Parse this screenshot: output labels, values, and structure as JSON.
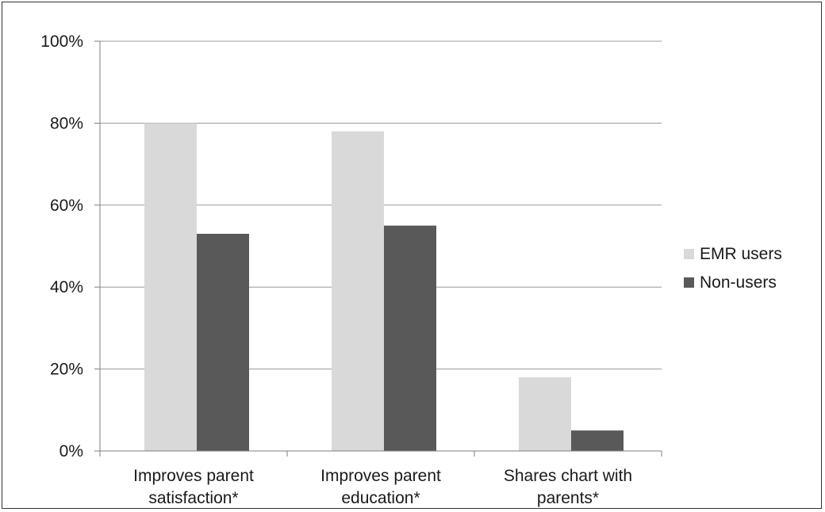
{
  "chart_data": {
    "type": "bar",
    "title": "",
    "xlabel": "",
    "ylabel": "",
    "categories": [
      [
        "Improves parent",
        "satisfaction*"
      ],
      [
        "Improves parent",
        "education*"
      ],
      [
        "Shares chart with",
        "parents*"
      ]
    ],
    "series": [
      {
        "name": "EMR users",
        "values": [
          80,
          78,
          18
        ],
        "color": "#d9d9d9"
      },
      {
        "name": "Non-users",
        "values": [
          53,
          55,
          5
        ],
        "color": "#595959"
      }
    ],
    "ylim": [
      0,
      100
    ],
    "yticks": [
      0,
      20,
      40,
      60,
      80,
      100
    ],
    "ytick_suffix": "%",
    "grid": true,
    "legend_position": "right"
  }
}
